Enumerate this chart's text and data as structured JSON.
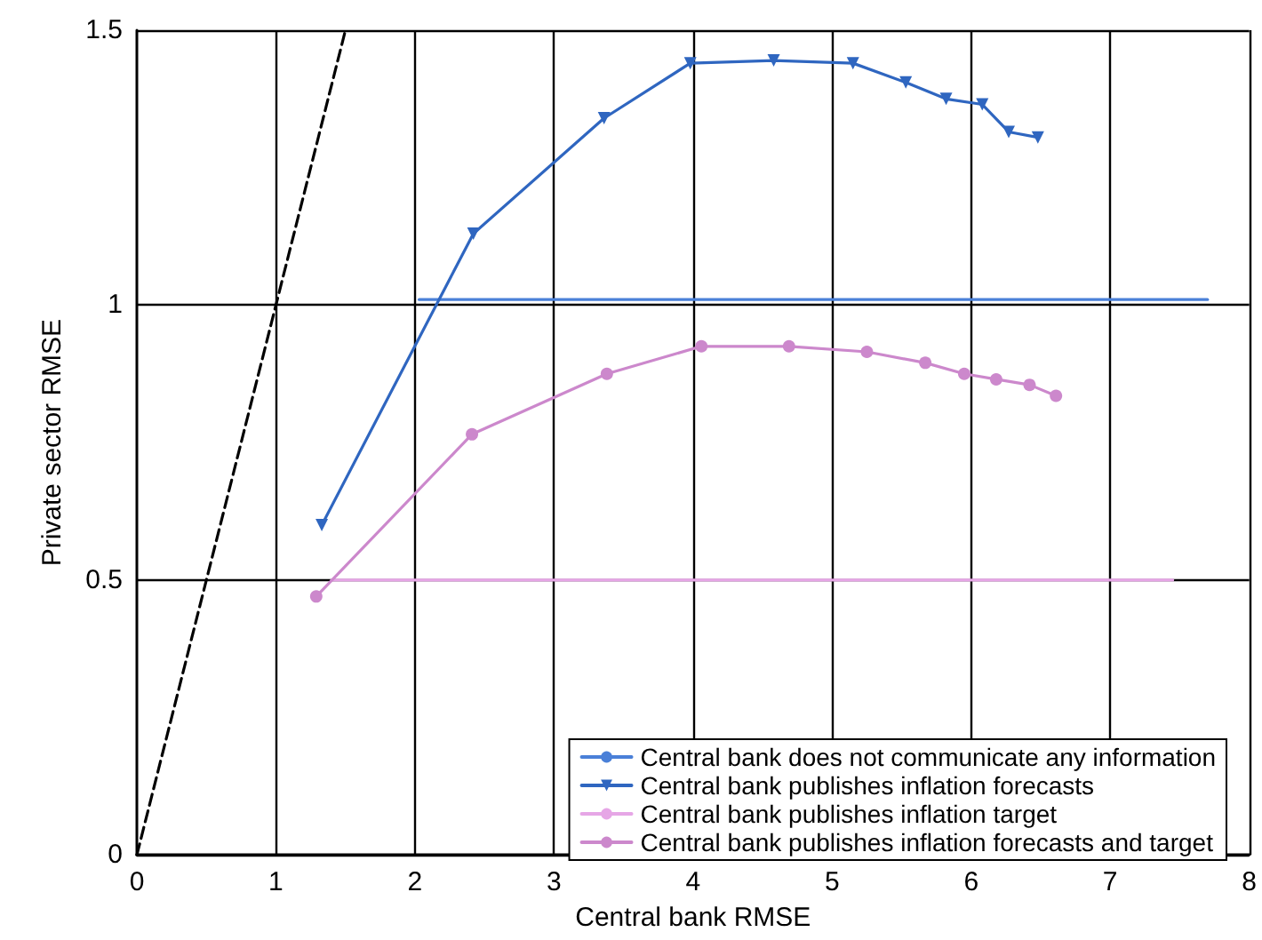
{
  "chart_data": {
    "type": "line",
    "xlabel": "Central bank RMSE",
    "ylabel": "Private sector RMSE",
    "xlim": [
      0,
      8
    ],
    "xticks": [
      0,
      1,
      2,
      3,
      4,
      5,
      6,
      7,
      8
    ],
    "ylim": [
      0,
      1.5
    ],
    "yticks": [
      0,
      0.5,
      1,
      1.5
    ],
    "grid": true,
    "legend": "bottom right",
    "marker": "none",
    "series": [
      {
        "name": "Central bank does not communicate any information",
        "color": "#4a80d8",
        "x": [
          2.03,
          7.7
        ],
        "values": [
          1.01,
          1.01
        ]
      },
      {
        "name": "Central bank publishes inflation forecasts",
        "color": "#2f66c0",
        "marker": "triangle",
        "x": [
          1.33,
          2.42,
          3.36,
          3.98,
          4.58,
          5.15,
          5.53,
          5.82,
          6.08,
          6.27,
          6.48
        ],
        "values": [
          0.6,
          1.13,
          1.34,
          1.44,
          1.445,
          1.44,
          1.405,
          1.375,
          1.365,
          1.315,
          1.305
        ]
      },
      {
        "name": "Central bank publishes inflation target",
        "color": "#e6a6e6",
        "x": [
          1.4,
          7.45
        ],
        "values": [
          0.5,
          0.5
        ]
      },
      {
        "name": "Central bank publishes inflation forecasts and target",
        "color": "#cc88cc",
        "marker": "circle",
        "x": [
          1.29,
          2.41,
          3.38,
          4.06,
          4.69,
          5.25,
          5.67,
          5.95,
          6.18,
          6.42,
          6.61
        ],
        "values": [
          0.47,
          0.765,
          0.875,
          0.925,
          0.925,
          0.915,
          0.895,
          0.875,
          0.865,
          0.855,
          0.835
        ]
      },
      {
        "color": "#000000",
        "line_style": "dashed",
        "x": [
          0,
          1.5
        ],
        "values": [
          0,
          1.5
        ]
      }
    ]
  }
}
